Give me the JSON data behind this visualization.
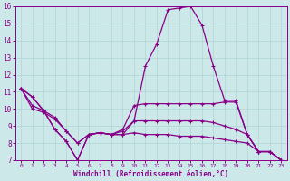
{
  "xlabel": "Windchill (Refroidissement éolien,°C)",
  "background_color": "#cce8e8",
  "grid_color": "#aed4d4",
  "line_color": "#880088",
  "xlim": [
    -0.5,
    23.5
  ],
  "ylim": [
    7,
    16
  ],
  "xticks": [
    0,
    1,
    2,
    3,
    4,
    5,
    6,
    7,
    8,
    9,
    10,
    11,
    12,
    13,
    14,
    15,
    16,
    17,
    18,
    19,
    20,
    21,
    22,
    23
  ],
  "yticks": [
    7,
    8,
    9,
    10,
    11,
    12,
    13,
    14,
    15,
    16
  ],
  "lines": [
    [
      11.2,
      10.7,
      9.9,
      8.8,
      8.1,
      7.0,
      8.5,
      8.6,
      8.5,
      8.5,
      9.3,
      12.5,
      13.8,
      15.8,
      15.9,
      16.0,
      14.9,
      12.5,
      10.5,
      10.5,
      8.5,
      7.5,
      7.5,
      7.0
    ],
    [
      11.2,
      10.2,
      9.9,
      9.5,
      8.7,
      8.0,
      8.5,
      8.6,
      8.5,
      8.8,
      10.2,
      10.3,
      10.3,
      10.3,
      10.3,
      10.3,
      10.3,
      10.3,
      10.4,
      10.4,
      8.5,
      7.5,
      7.5,
      7.0
    ],
    [
      11.2,
      10.0,
      9.8,
      9.4,
      8.7,
      8.0,
      8.5,
      8.6,
      8.5,
      8.7,
      9.3,
      9.3,
      9.3,
      9.3,
      9.3,
      9.3,
      9.3,
      9.2,
      9.0,
      8.8,
      8.5,
      7.5,
      7.5,
      7.0
    ],
    [
      11.2,
      10.7,
      9.9,
      8.8,
      8.1,
      7.0,
      8.5,
      8.6,
      8.5,
      8.5,
      8.6,
      8.5,
      8.5,
      8.5,
      8.4,
      8.4,
      8.4,
      8.3,
      8.2,
      8.1,
      8.0,
      7.5,
      7.5,
      7.0
    ]
  ]
}
